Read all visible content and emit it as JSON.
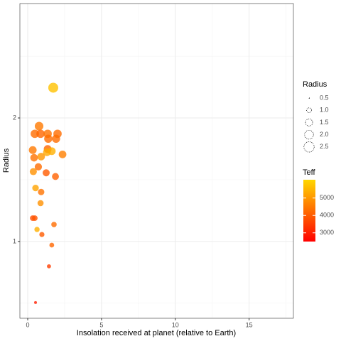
{
  "chart_data": {
    "type": "scatter",
    "x_label": "Insolation received at planet (relative to Earth)",
    "y_label": "Radius",
    "x": [
      1.73,
      0.77,
      0.48,
      0.87,
      1.35,
      2.02,
      1.39,
      1.92,
      0.34,
      1.35,
      1.63,
      1.3,
      0.91,
      2.36,
      0.43,
      0.72,
      0.38,
      1.25,
      1.88,
      0.53,
      0.91,
      0.87,
      0.34,
      0.48,
      1.78,
      0.63,
      0.96,
      1.63,
      1.44,
      0.53
    ],
    "y": [
      2.37,
      1.91,
      1.83,
      1.83,
      1.83,
      1.83,
      1.78,
      1.78,
      1.67,
      1.68,
      1.66,
      1.65,
      1.61,
      1.63,
      1.6,
      1.52,
      1.48,
      1.47,
      1.44,
      1.35,
      1.32,
      1.24,
      1.14,
      1.14,
      1.1,
      1.07,
      1.04,
      0.98,
      0.87,
      0.71
    ],
    "teff": [
      5700,
      4500,
      4300,
      4200,
      4400,
      4300,
      4300,
      4300,
      4500,
      4200,
      5400,
      5300,
      5000,
      4600,
      4400,
      4300,
      4900,
      4000,
      4100,
      5200,
      4400,
      4900,
      3800,
      3900,
      4300,
      5400,
      4000,
      4200,
      3500,
      3000
    ],
    "xlim": [
      -0.53,
      18
    ],
    "xticks": [
      0,
      5,
      10,
      15
    ],
    "ylim": [
      0.65,
      3.8
    ],
    "yticks": [
      1,
      2
    ],
    "y_log": true,
    "grid": true,
    "size_title": "Radius",
    "size_breaks": [
      0.5,
      {
        "value": 1,
        "label": "1.0"
      },
      1.5,
      {
        "value": 2,
        "label": "2.0"
      },
      2.5
    ],
    "color_title": "Teff",
    "color_low": "#ff0000",
    "color_high": "#ffd700",
    "color_lim": [
      2500,
      6050
    ],
    "color_ticks": [
      3000,
      4000,
      5000
    ]
  }
}
